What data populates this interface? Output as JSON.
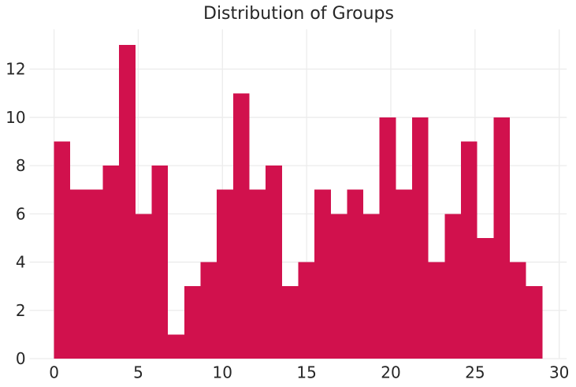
{
  "chart_data": {
    "type": "bar",
    "subtype": "histogram",
    "title": "Distribution of Groups",
    "xlabel": "",
    "ylabel": "",
    "bin_start": 0,
    "bin_width": 0.96667,
    "values": [
      9,
      7,
      7,
      8,
      13,
      6,
      8,
      1,
      3,
      4,
      7,
      11,
      7,
      8,
      3,
      4,
      7,
      6,
      7,
      6,
      10,
      7,
      10,
      4,
      6,
      9,
      5,
      10,
      4,
      3
    ],
    "xticks": [
      0,
      5,
      10,
      15,
      20,
      25,
      30
    ],
    "yticks": [
      0,
      2,
      4,
      6,
      8,
      10,
      12
    ],
    "xlim": [
      -1.45,
      30.45
    ],
    "ylim": [
      0,
      13.65
    ],
    "grid": true,
    "legend": false,
    "colors": {
      "bar": "#d1114d",
      "grid": "#ececec",
      "text": "#262626",
      "background": "#ffffff"
    }
  }
}
